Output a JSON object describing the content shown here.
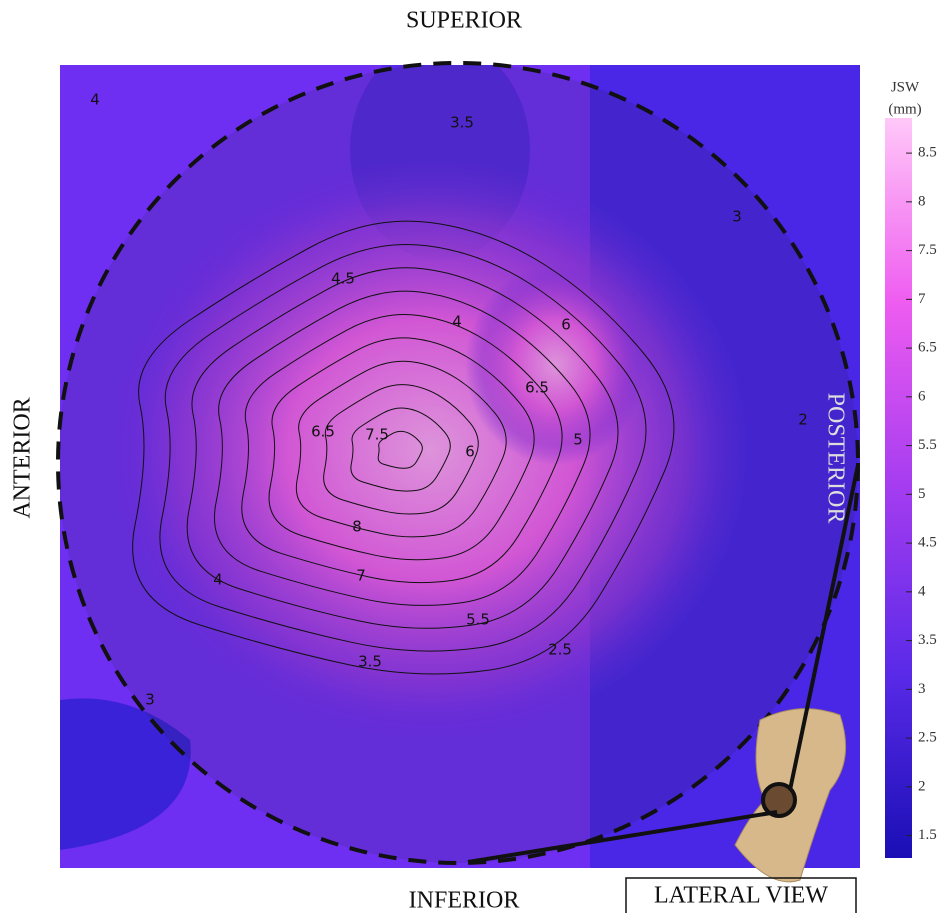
{
  "chart_data": {
    "type": "contour",
    "labels": {
      "superior": "SUPERIOR",
      "inferior": "INFERIOR",
      "anterior": "ANTERIOR",
      "posterior": "POSTERIOR",
      "view": "LATERAL VIEW"
    },
    "colorbar": {
      "title": [
        "JSW",
        "(mm)"
      ],
      "lim": [
        1.27,
        8.86
      ],
      "ticks": [
        1.5,
        2,
        2.5,
        3,
        3.5,
        4,
        4.5,
        5,
        5.5,
        6,
        6.5,
        7,
        7.5,
        8,
        8.5
      ],
      "colors": [
        "#1a0fb5",
        "#5a2ae8",
        "#a43cf0",
        "#ee5cf0",
        "#ffc8f8"
      ]
    },
    "contour_levels": [
      3.5,
      4,
      4.5,
      5,
      5.5,
      6,
      6.5,
      7,
      7.5,
      8
    ],
    "contour_labels": [
      4,
      3.5,
      4.5,
      4,
      6,
      6.5,
      6.5,
      7.5,
      6,
      5,
      8,
      7,
      5.5,
      4,
      3.5,
      2.5,
      3,
      3,
      2
    ]
  }
}
